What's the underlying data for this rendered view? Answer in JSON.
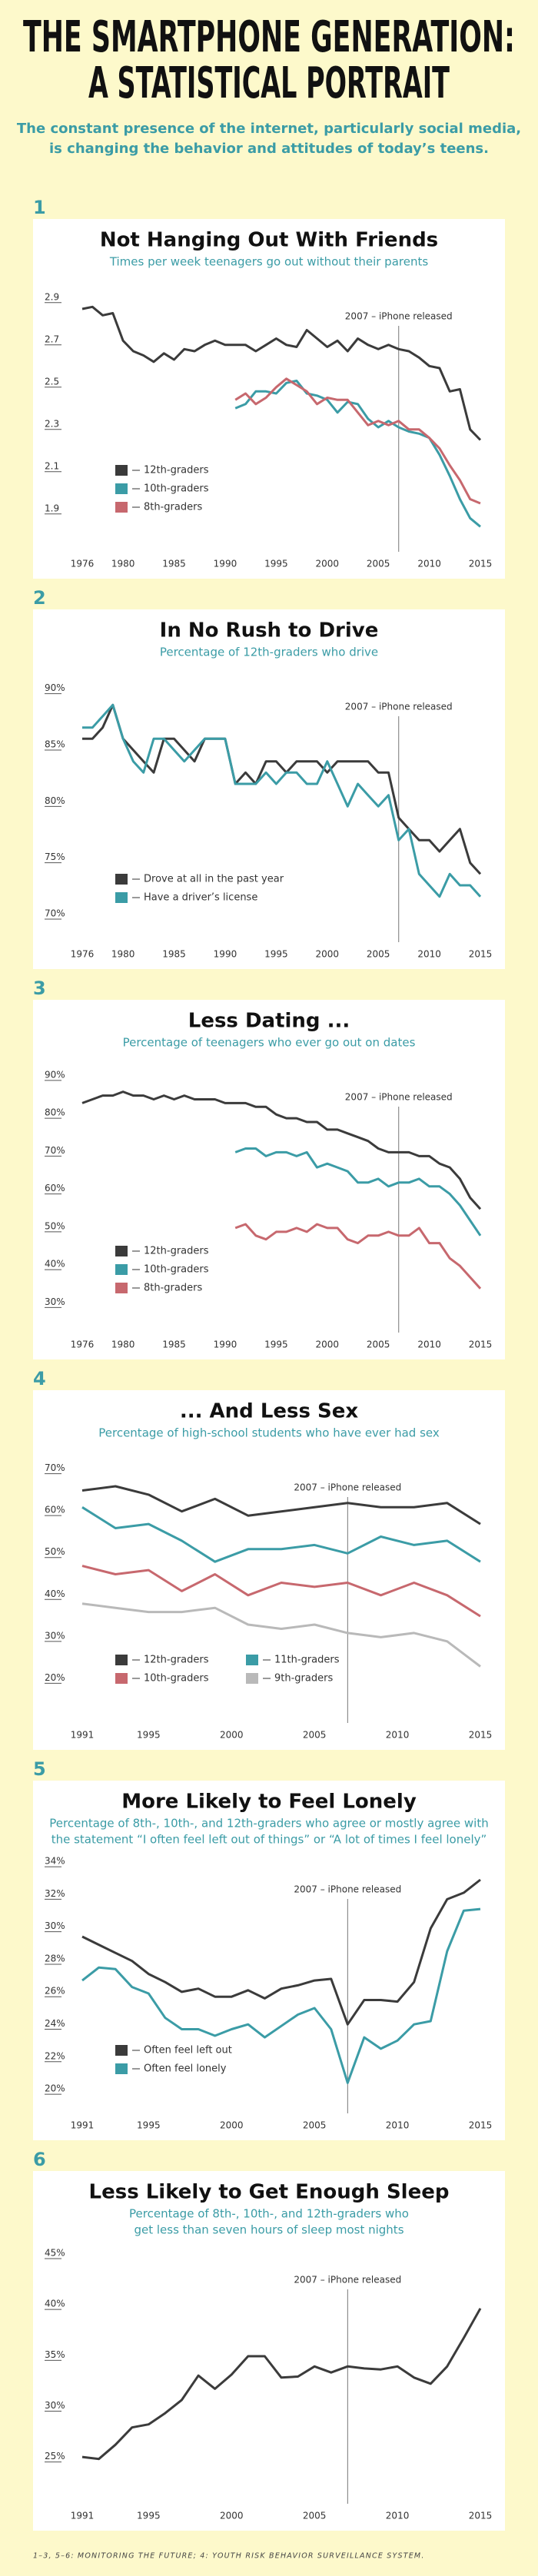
{
  "header": {
    "title": [
      "THE SMARTPHONE GENERATION:",
      "A STATISTICAL PORTRAIT"
    ],
    "subtitle": [
      "The constant presence of the internet, particularly social media,",
      "is changing the behavior and attitudes of today’s teens."
    ]
  },
  "chart_data": [
    {
      "type": "line",
      "number": "1",
      "title": "Not Hanging Out With Friends",
      "subtitle": [
        "Times per week teenagers go out without their parents"
      ],
      "x": [
        1976,
        1977,
        1978,
        1979,
        1980,
        1981,
        1982,
        1983,
        1984,
        1985,
        1986,
        1987,
        1988,
        1989,
        1990,
        1991,
        1992,
        1993,
        1994,
        1995,
        1996,
        1997,
        1998,
        1999,
        2000,
        2001,
        2002,
        2003,
        2004,
        2005,
        2006,
        2007,
        2008,
        2009,
        2010,
        2011,
        2012,
        2013,
        2014,
        2015
      ],
      "xlim": [
        1976,
        2015
      ],
      "xticks": [
        1976,
        1980,
        1985,
        1990,
        1995,
        2000,
        2005,
        2010,
        2015
      ],
      "ylim": [
        1.75,
        2.95
      ],
      "yticks": [
        1.9,
        2.1,
        2.3,
        2.5,
        2.7,
        2.9
      ],
      "annotation": {
        "text": "2007 – iPhone released",
        "x": 2007
      },
      "legend": "lower left",
      "series": [
        {
          "name": "12th-graders",
          "color": "#3b3b3b",
          "values": [
            2.87,
            2.88,
            2.84,
            2.85,
            2.72,
            2.67,
            2.65,
            2.62,
            2.66,
            2.63,
            2.68,
            2.67,
            2.7,
            2.72,
            2.7,
            2.7,
            2.7,
            2.67,
            2.7,
            2.73,
            2.7,
            2.69,
            2.77,
            2.73,
            2.69,
            2.72,
            2.67,
            2.73,
            2.7,
            2.68,
            2.7,
            2.68,
            2.67,
            2.64,
            2.6,
            2.59,
            2.48,
            2.49,
            2.3,
            2.25
          ]
        },
        {
          "name": "10th-graders",
          "color": "#3b9ca6",
          "values": [
            null,
            null,
            null,
            null,
            null,
            null,
            null,
            null,
            null,
            null,
            null,
            null,
            null,
            null,
            null,
            2.4,
            2.42,
            2.48,
            2.48,
            2.47,
            2.52,
            2.53,
            2.47,
            2.46,
            2.44,
            2.38,
            2.43,
            2.42,
            2.35,
            2.31,
            2.34,
            2.31,
            2.29,
            2.28,
            2.26,
            2.18,
            2.08,
            1.97,
            1.88,
            1.84
          ]
        },
        {
          "name": "8th-graders",
          "color": "#c7686e",
          "values": [
            null,
            null,
            null,
            null,
            null,
            null,
            null,
            null,
            null,
            null,
            null,
            null,
            null,
            null,
            null,
            2.44,
            2.47,
            2.42,
            2.45,
            2.5,
            2.54,
            2.51,
            2.48,
            2.42,
            2.45,
            2.44,
            2.44,
            2.38,
            2.32,
            2.34,
            2.32,
            2.34,
            2.3,
            2.3,
            2.26,
            2.21,
            2.13,
            2.06,
            1.97,
            1.95
          ]
        }
      ]
    },
    {
      "type": "line",
      "number": "2",
      "title": "In No Rush to Drive",
      "subtitle": [
        "Percentage of 12th-graders who drive"
      ],
      "x": [
        1976,
        1977,
        1978,
        1979,
        1980,
        1981,
        1982,
        1983,
        1984,
        1985,
        1986,
        1987,
        1988,
        1989,
        1990,
        1991,
        1992,
        1993,
        1994,
        1995,
        1996,
        1997,
        1998,
        1999,
        2000,
        2001,
        2002,
        2003,
        2004,
        2005,
        2006,
        2007,
        2008,
        2009,
        2010,
        2011,
        2012,
        2013,
        2014,
        2015
      ],
      "xlim": [
        1976,
        2015
      ],
      "xticks": [
        1976,
        1980,
        1985,
        1990,
        1995,
        2000,
        2005,
        2010,
        2015
      ],
      "ylim": [
        68.5,
        91
      ],
      "yticks": [
        {
          "value": 70,
          "label": "70%"
        },
        {
          "value": 75,
          "label": "75%"
        },
        {
          "value": 80,
          "label": "80%"
        },
        {
          "value": 85,
          "label": "85%"
        },
        {
          "value": 90,
          "label": "90%"
        }
      ],
      "annotation": {
        "text": "2007 – iPhone released",
        "x": 2007
      },
      "legend": "lower left",
      "series": [
        {
          "name": "Drove at all in the past year",
          "color": "#3b3b3b",
          "values": [
            86,
            86,
            87,
            89,
            86,
            85,
            84,
            83,
            86,
            86,
            85,
            84,
            86,
            86,
            86,
            82,
            83,
            82,
            84,
            84,
            83,
            84,
            84,
            84,
            83,
            84,
            84,
            84,
            84,
            83,
            83,
            79,
            78,
            77,
            77,
            76,
            77,
            78,
            75,
            74
          ]
        },
        {
          "name": "Have a driver’s license",
          "color": "#3b9ca6",
          "values": [
            87,
            87,
            88,
            89,
            86,
            84,
            83,
            86,
            86,
            85,
            84,
            85,
            86,
            86,
            86,
            82,
            82,
            82,
            83,
            82,
            83,
            83,
            82,
            82,
            84,
            82,
            80,
            82,
            81,
            80,
            81,
            77,
            78,
            74,
            73,
            72,
            74,
            73,
            73,
            72
          ]
        }
      ]
    },
    {
      "type": "line",
      "number": "3",
      "title": "Less Dating ...",
      "subtitle": [
        "Percentage of teenagers who ever go out on dates"
      ],
      "x": [
        1976,
        1977,
        1978,
        1979,
        1980,
        1981,
        1982,
        1983,
        1984,
        1985,
        1986,
        1987,
        1988,
        1989,
        1990,
        1991,
        1992,
        1993,
        1994,
        1995,
        1996,
        1997,
        1998,
        1999,
        2000,
        2001,
        2002,
        2003,
        2004,
        2005,
        2006,
        2007,
        2008,
        2009,
        2010,
        2011,
        2012,
        2013,
        2014,
        2015
      ],
      "xlim": [
        1976,
        2015
      ],
      "xticks": [
        1976,
        1980,
        1985,
        1990,
        1995,
        2000,
        2005,
        2010,
        2015
      ],
      "ylim": [
        25,
        92
      ],
      "yticks": [
        {
          "value": 30,
          "label": "30%"
        },
        {
          "value": 40,
          "label": "40%"
        },
        {
          "value": 50,
          "label": "50%"
        },
        {
          "value": 60,
          "label": "60%"
        },
        {
          "value": 70,
          "label": "70%"
        },
        {
          "value": 80,
          "label": "80%"
        },
        {
          "value": 90,
          "label": "90%"
        }
      ],
      "annotation": {
        "text": "2007 – iPhone released",
        "x": 2007
      },
      "legend": "lower left",
      "series": [
        {
          "name": "12th-graders",
          "color": "#3b3b3b",
          "values": [
            84,
            85,
            86,
            86,
            87,
            86,
            86,
            85,
            86,
            85,
            86,
            85,
            85,
            85,
            84,
            84,
            84,
            83,
            83,
            81,
            80,
            80,
            79,
            79,
            77,
            77,
            76,
            75,
            74,
            72,
            71,
            71,
            71,
            70,
            70,
            68,
            67,
            64,
            59,
            56
          ]
        },
        {
          "name": "10th-graders",
          "color": "#3b9ca6",
          "values": [
            null,
            null,
            null,
            null,
            null,
            null,
            null,
            null,
            null,
            null,
            null,
            null,
            null,
            null,
            null,
            71,
            72,
            72,
            70,
            71,
            71,
            70,
            71,
            67,
            68,
            67,
            66,
            63,
            63,
            64,
            62,
            63,
            63,
            64,
            62,
            62,
            60,
            57,
            53,
            49
          ]
        },
        {
          "name": "8th-graders",
          "color": "#c7686e",
          "values": [
            null,
            null,
            null,
            null,
            null,
            null,
            null,
            null,
            null,
            null,
            null,
            null,
            null,
            null,
            null,
            51,
            52,
            49,
            48,
            50,
            50,
            51,
            50,
            52,
            51,
            51,
            48,
            47,
            49,
            49,
            50,
            49,
            49,
            51,
            47,
            47,
            43,
            41,
            38,
            35
          ]
        }
      ]
    },
    {
      "type": "line",
      "number": "4",
      "title": "... And Less Sex",
      "subtitle": [
        "Percentage of high-school students who have ever had sex"
      ],
      "x": [
        1991,
        1993,
        1995,
        1997,
        1999,
        2001,
        2003,
        2005,
        2007,
        2009,
        2011,
        2013,
        2015
      ],
      "xlim": [
        1991,
        2015
      ],
      "xticks": [
        1991,
        1995,
        2000,
        2005,
        2010,
        2015
      ],
      "ylim": [
        12,
        72.5
      ],
      "yticks": [
        {
          "value": 20,
          "label": "20%"
        },
        {
          "value": 30,
          "label": "30%"
        },
        {
          "value": 40,
          "label": "40%"
        },
        {
          "value": 50,
          "label": "50%"
        },
        {
          "value": 60,
          "label": "60%"
        },
        {
          "value": 70,
          "label": "70%"
        }
      ],
      "annotation": {
        "text": "2007 – iPhone released",
        "x": 2007
      },
      "legend": "lower left",
      "series": [
        {
          "name": "12th-graders",
          "color": "#3b3b3b",
          "values": [
            66,
            67,
            65,
            61,
            64,
            60,
            61,
            62,
            63,
            62,
            62,
            63,
            58
          ]
        },
        {
          "name": "11th-graders",
          "color": "#3b9ca6",
          "values": [
            62,
            57,
            58,
            54,
            49,
            52,
            52,
            53,
            51,
            55,
            53,
            54,
            49
          ]
        },
        {
          "name": "10th-graders",
          "color": "#c7686e",
          "values": [
            48,
            46,
            47,
            42,
            46,
            41,
            44,
            43,
            44,
            41,
            44,
            41,
            36
          ]
        },
        {
          "name": "9th-graders",
          "color": "#b9b9b9",
          "values": [
            39,
            38,
            37,
            37,
            38,
            34,
            33,
            34,
            32,
            31,
            32,
            30,
            24
          ]
        }
      ]
    },
    {
      "type": "line",
      "number": "5",
      "title": "More Likely to Feel Lonely",
      "subtitle": [
        "Percentage of 8th-, 10th-, and 12th-graders who agree or mostly agree with",
        "the statement “I often feel left out of things” or “A lot of times I feel lonely”"
      ],
      "x": [
        1991,
        1992,
        1993,
        1994,
        1995,
        1996,
        1997,
        1998,
        1999,
        2000,
        2001,
        2002,
        2003,
        2004,
        2005,
        2006,
        2007,
        2008,
        2009,
        2010,
        2011,
        2012,
        2013,
        2014,
        2015
      ],
      "xlim": [
        1991,
        2015
      ],
      "xticks": [
        1991,
        1995,
        2000,
        2005,
        2010,
        2015
      ],
      "ylim": [
        19.2,
        34.1
      ],
      "yticks": [
        {
          "value": 20,
          "label": "20%"
        },
        {
          "value": 22,
          "label": "22%"
        },
        {
          "value": 24,
          "label": "24%"
        },
        {
          "value": 26,
          "label": "26%"
        },
        {
          "value": 28,
          "label": "28%"
        },
        {
          "value": 30,
          "label": "30%"
        },
        {
          "value": 32,
          "label": "32%"
        },
        {
          "value": 34,
          "label": "34%"
        }
      ],
      "annotation": {
        "text": "2007 – iPhone released",
        "x": 2007
      },
      "legend": "lower left",
      "series": [
        {
          "name": "Often feel left out",
          "color": "#3b3b3b",
          "values": [
            29.7,
            29.2,
            28.7,
            28.2,
            27.4,
            26.9,
            26.3,
            26.5,
            26.0,
            26.0,
            26.4,
            25.9,
            26.5,
            26.7,
            27.0,
            27.1,
            24.3,
            25.8,
            25.8,
            25.7,
            26.9,
            30.2,
            32.0,
            32.4,
            33.2
          ]
        },
        {
          "name": "Often feel lonely",
          "color": "#3b9ca6",
          "values": [
            27.0,
            27.8,
            27.7,
            26.6,
            26.2,
            24.7,
            24.0,
            24.0,
            23.6,
            24.0,
            24.3,
            23.5,
            24.2,
            24.9,
            25.3,
            24.0,
            20.7,
            23.5,
            22.8,
            23.3,
            24.3,
            24.5,
            28.8,
            31.3,
            31.4
          ]
        }
      ]
    },
    {
      "type": "line",
      "number": "6",
      "title": "Less Likely to Get Enough Sleep",
      "subtitle": [
        "Percentage of 8th-, 10th-, and 12th-graders who",
        "get less than seven hours of sleep most nights"
      ],
      "x": [
        1991,
        1992,
        1993,
        1994,
        1995,
        1996,
        1997,
        1998,
        1999,
        2000,
        2001,
        2002,
        2003,
        2004,
        2005,
        2006,
        2007,
        2008,
        2009,
        2010,
        2011,
        2012,
        2013,
        2014,
        2015
      ],
      "xlim": [
        1991,
        2015
      ],
      "xticks": [
        1991,
        1995,
        2000,
        2005,
        2010,
        2015
      ],
      "ylim": [
        21.5,
        45.3
      ],
      "yticks": [
        {
          "value": 25,
          "label": "25%"
        },
        {
          "value": 30,
          "label": "30%"
        },
        {
          "value": 35,
          "label": "35%"
        },
        {
          "value": 40,
          "label": "40%"
        },
        {
          "value": 45,
          "label": "45%"
        }
      ],
      "annotation": {
        "text": "2007 – iPhone released",
        "x": 2007
      },
      "series": [
        {
          "color": "#3b3b3b",
          "values": [
            25.5,
            25.3,
            26.7,
            28.4,
            28.7,
            29.8,
            31.1,
            33.5,
            32.2,
            33.6,
            35.4,
            35.4,
            33.3,
            33.4,
            34.4,
            33.8,
            34.4,
            34.2,
            34.1,
            34.4,
            33.3,
            32.7,
            34.4,
            37.2,
            40.1
          ]
        }
      ]
    }
  ],
  "footer": "1–3, 5–6: MONITORING THE FUTURE; 4: YOUTH RISK BEHAVIOR SURVEILLANCE SYSTEM."
}
